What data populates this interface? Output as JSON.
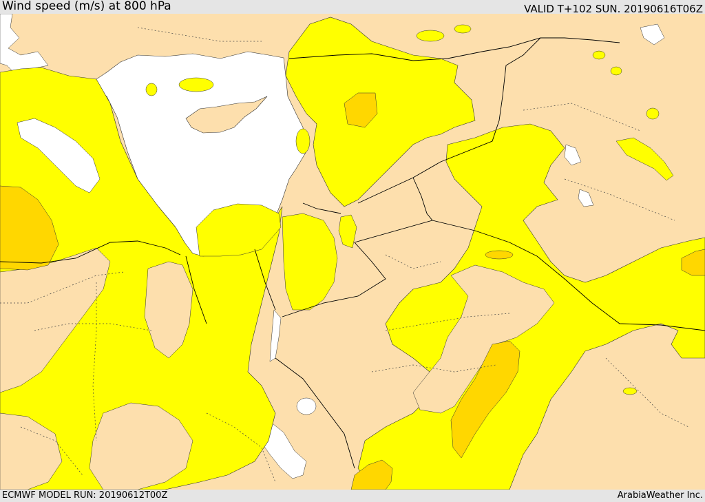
{
  "header": {
    "title": "Wind speed (m/s) at 800 hPa",
    "valid_time": "VALID T+102 SUN. 20190616T06Z"
  },
  "footer": {
    "model_run": "ECMWF MODEL RUN: 20190612T00Z",
    "credit": "ArabiaWeather Inc."
  },
  "legend_colors": {
    "background_bar": "#e5e5e5",
    "land": "#fddfad",
    "sea": "#ffffff",
    "wind_band_1": "#ffff00",
    "wind_band_2": "#ffd700",
    "contour_line": "#222222",
    "border_line": "#000000"
  }
}
